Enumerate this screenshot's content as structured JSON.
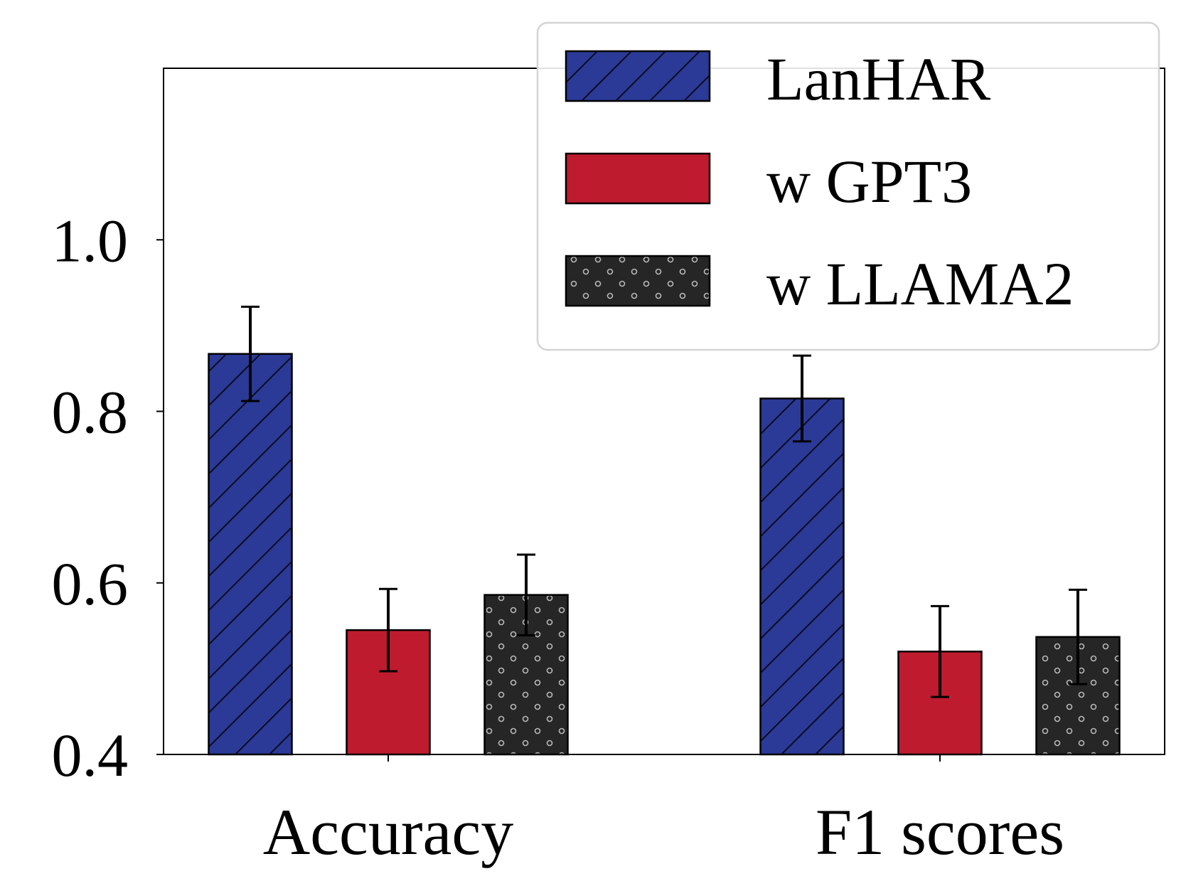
{
  "chart_data": {
    "type": "bar",
    "categories": [
      "Accuracy",
      "F1 scores"
    ],
    "series": [
      {
        "name": "LanHAR",
        "values": [
          0.867,
          0.815
        ],
        "errors": [
          0.055,
          0.05
        ],
        "color": "#2b3a96",
        "pattern": "hatch"
      },
      {
        "name": "w GPT3",
        "values": [
          0.545,
          0.52
        ],
        "errors": [
          0.048,
          0.053
        ],
        "color": "#be1c2e",
        "pattern": "none"
      },
      {
        "name": "w LLAMA2",
        "values": [
          0.586,
          0.537
        ],
        "errors": [
          0.047,
          0.055
        ],
        "color": "#262626",
        "pattern": "dots"
      }
    ],
    "title": "",
    "xlabel": "",
    "ylabel": "",
    "ylim": [
      0.4,
      1.2
    ],
    "yticks": [
      0.4,
      0.6,
      0.8,
      1.0
    ],
    "ytick_labels": [
      "0.4",
      "0.6",
      "0.8",
      "1.0"
    ],
    "legend": "top-right",
    "grid": false
  }
}
